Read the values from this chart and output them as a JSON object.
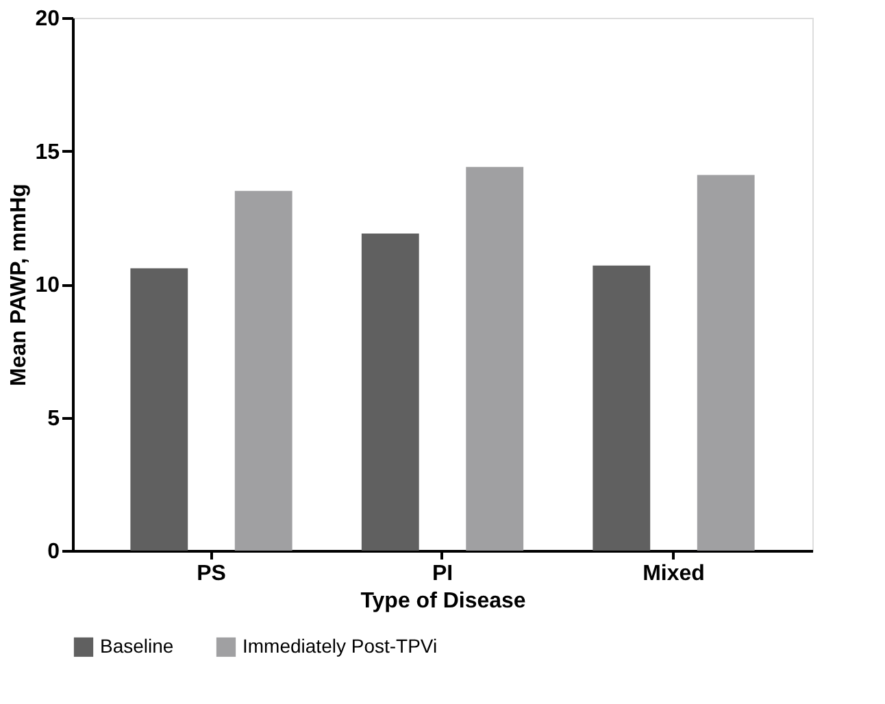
{
  "chart_data": {
    "type": "bar",
    "xlabel": "Type of Disease",
    "ylabel": "Mean PAWP, mmHg",
    "categories": [
      "PS",
      "PI",
      "Mixed"
    ],
    "series": [
      {
        "name": "Baseline",
        "color": "#606060",
        "values": [
          10.6,
          11.9,
          10.7
        ]
      },
      {
        "name": "Immediately Post-TPVi",
        "color": "#a0a0a2",
        "values": [
          13.5,
          14.4,
          14.1
        ]
      }
    ],
    "ylim": [
      0,
      20
    ],
    "yticks": [
      0,
      5,
      10,
      15,
      20
    ],
    "grid": false,
    "legend": "bottom"
  }
}
